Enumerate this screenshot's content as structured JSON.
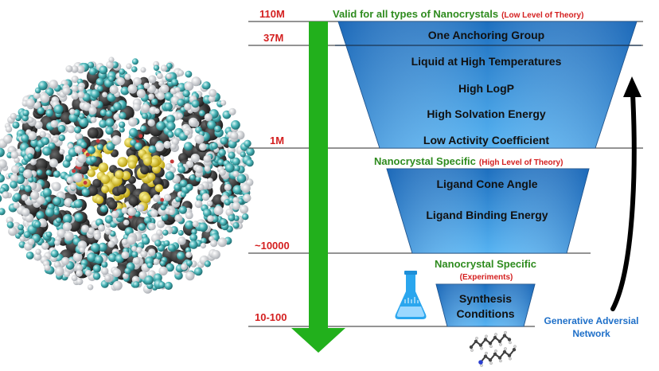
{
  "levels": {
    "l1": "110M",
    "l2": "37M",
    "l3": "1M",
    "l4": "~10000",
    "l5": "10-100"
  },
  "stages": {
    "s1_title": "Valid for all types of Nanocrystals",
    "s1_sub": "(Low Level of Theory)",
    "s2_title": "Nanocrystal Specific",
    "s2_sub": "(High Level of Theory)",
    "s3_title": "Nanocrystal Specific",
    "s3_sub": "(Experiments)"
  },
  "filters": {
    "f1": "One Anchoring Group",
    "f2": "Liquid at High Temperatures",
    "f3": "High LogP",
    "f4": "High Solvation Energy",
    "f5": "Low Activity Coefficient",
    "f6": "Ligand Cone Angle",
    "f7": "Ligand Binding Energy",
    "f8a": "Synthesis",
    "f8b": "Conditions"
  },
  "gan": {
    "line1": "Generative Adversial",
    "line2": "Network"
  },
  "colors": {
    "accent_red": "#d42020",
    "accent_green": "#2e8b1e",
    "funnel_blue": "#2f86d6",
    "arrow_green": "#22b01c",
    "gan_blue": "#1e6fc8"
  },
  "icons": [
    "nanocrystal-render",
    "flask-icon",
    "ligand-molecule-icon"
  ]
}
